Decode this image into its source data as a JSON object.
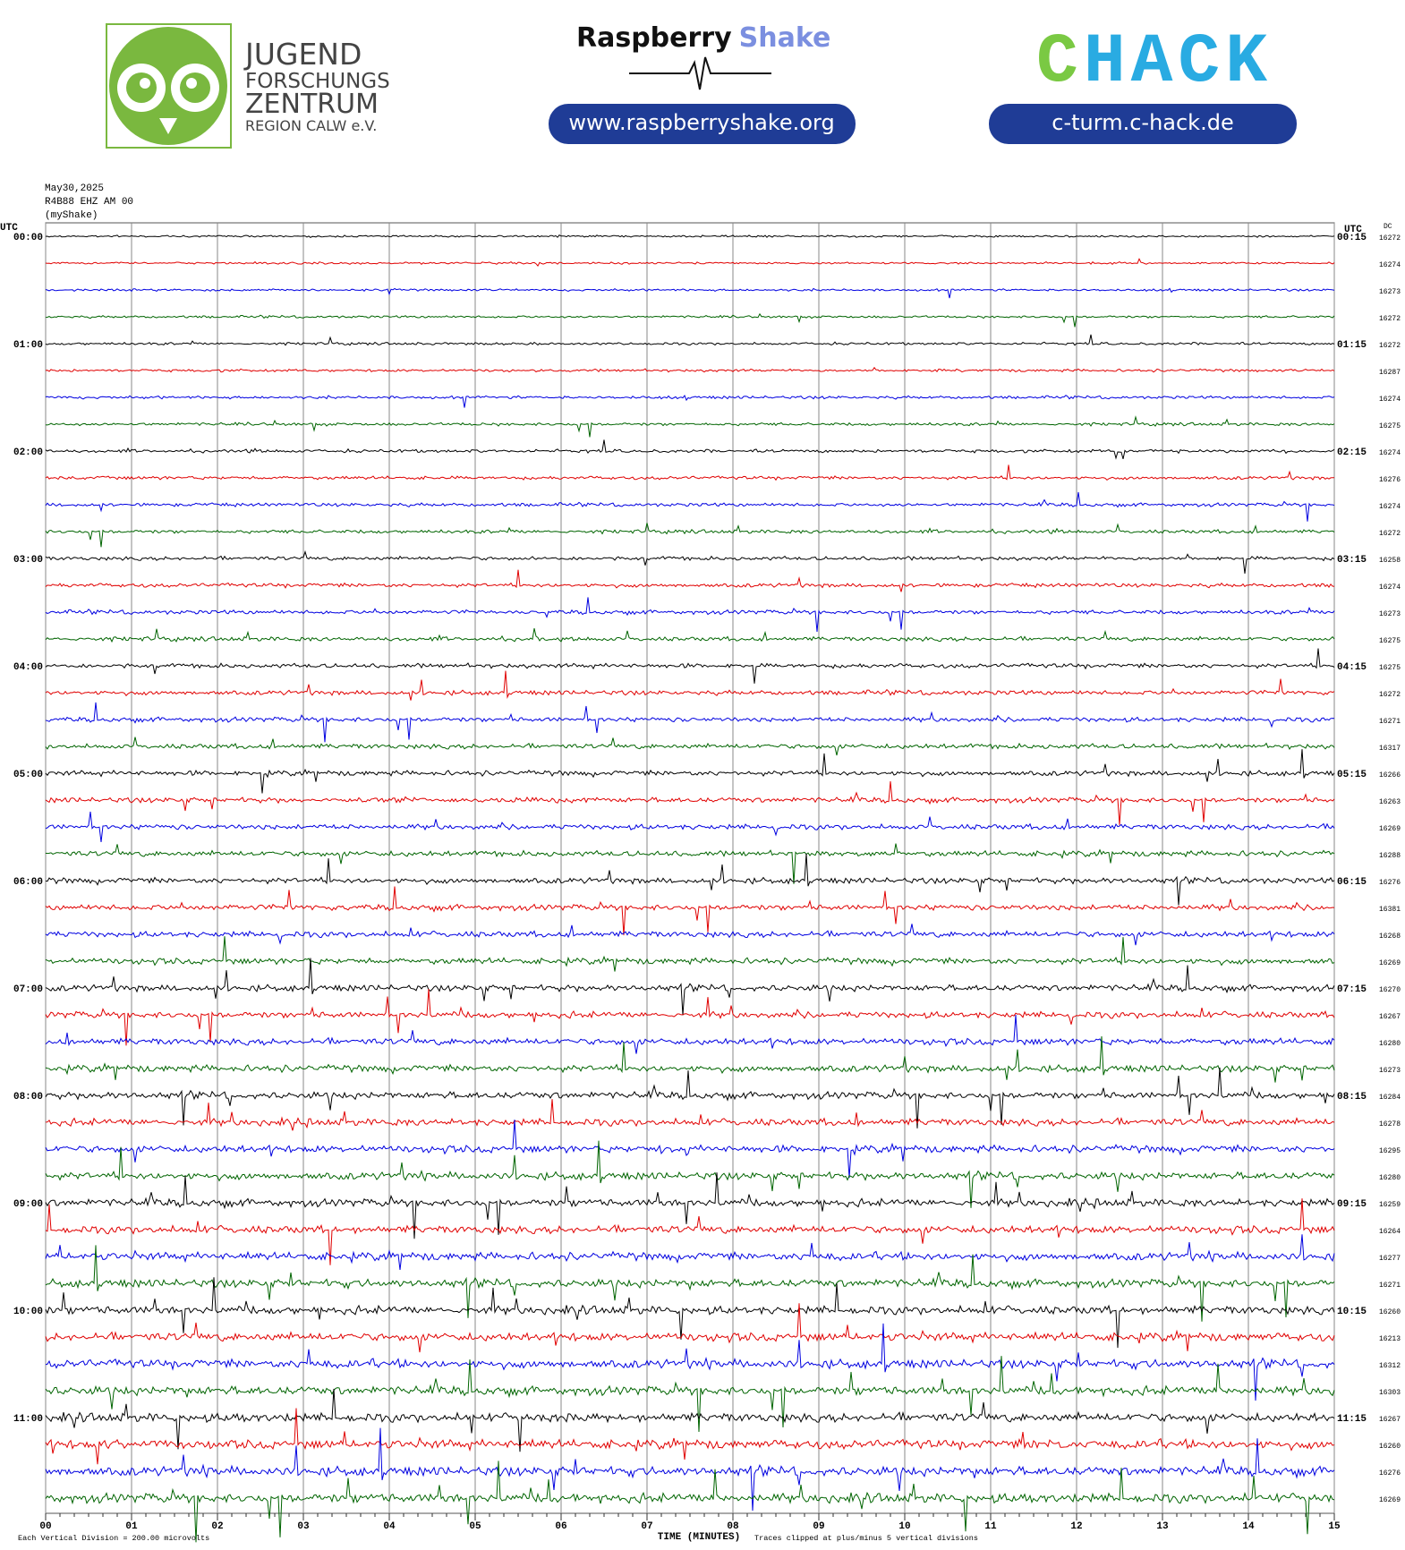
{
  "header": {
    "org_lines": [
      "JUGEND",
      "FORSCHUNGS",
      "ZENTRUM",
      "REGION CALW e.V."
    ],
    "brand_left": "Raspberry",
    "brand_right": "Shake",
    "brand_url": "www.raspberryshake.org",
    "chack_c": "C",
    "chack_rest": "HACK",
    "chack_url": "c-turm.c-hack.de"
  },
  "chart_data": {
    "type": "helicorder",
    "date": "May30,2025",
    "station": "R4B88 EHZ AM 00",
    "source": "(myShake)",
    "left_axis_label": "UTC",
    "right_axis_label": "UTC",
    "dc_label": "DC",
    "xlabel": "TIME (MINUTES)",
    "footer_left": "Each Vertical Division =  200.00 microvolts",
    "footer_right": "Traces clipped at plus/minus 5 vertical divisions",
    "colors": [
      "#000000",
      "#e00000",
      "#0000e0",
      "#006400"
    ],
    "xlim": [
      0,
      15
    ],
    "xticks": [
      {
        "value": 0,
        "label": "00"
      },
      {
        "value": 1,
        "label": "01"
      },
      {
        "value": 2,
        "label": "02"
      },
      {
        "value": 3,
        "label": "03"
      },
      {
        "value": 4,
        "label": "04"
      },
      {
        "value": 5,
        "label": "05"
      },
      {
        "value": 6,
        "label": "06"
      },
      {
        "value": 7,
        "label": "07"
      },
      {
        "value": 8,
        "label": "08"
      },
      {
        "value": 9,
        "label": "09"
      },
      {
        "value": 10,
        "label": "10"
      },
      {
        "value": 11,
        "label": "11"
      },
      {
        "value": 12,
        "label": "12"
      },
      {
        "value": 13,
        "label": "13"
      },
      {
        "value": 14,
        "label": "14"
      },
      {
        "value": 15,
        "label": "15"
      }
    ],
    "left_labels": [
      "00:00",
      "01:00",
      "02:00",
      "03:00",
      "04:00",
      "05:00",
      "06:00",
      "07:00",
      "08:00",
      "09:00",
      "10:00",
      "11:00"
    ],
    "right_labels": [
      "00:15",
      "01:15",
      "02:15",
      "03:15",
      "04:15",
      "05:15",
      "06:15",
      "07:15",
      "08:15",
      "09:15",
      "10:15",
      "11:15"
    ],
    "dc": [
      16272,
      16274,
      16273,
      16272,
      16272,
      16287,
      16274,
      16275,
      16274,
      16276,
      16274,
      16272,
      16258,
      16274,
      16273,
      16275,
      16275,
      16272,
      16271,
      16317,
      16266,
      16263,
      16269,
      16288,
      16276,
      16381,
      16268,
      16269,
      16270,
      16267,
      16280,
      16273,
      16284,
      16278,
      16295,
      16280,
      16259,
      16264,
      16277,
      16271,
      16260,
      16213,
      16312,
      16303,
      16267,
      16260,
      16276,
      16269
    ]
  }
}
